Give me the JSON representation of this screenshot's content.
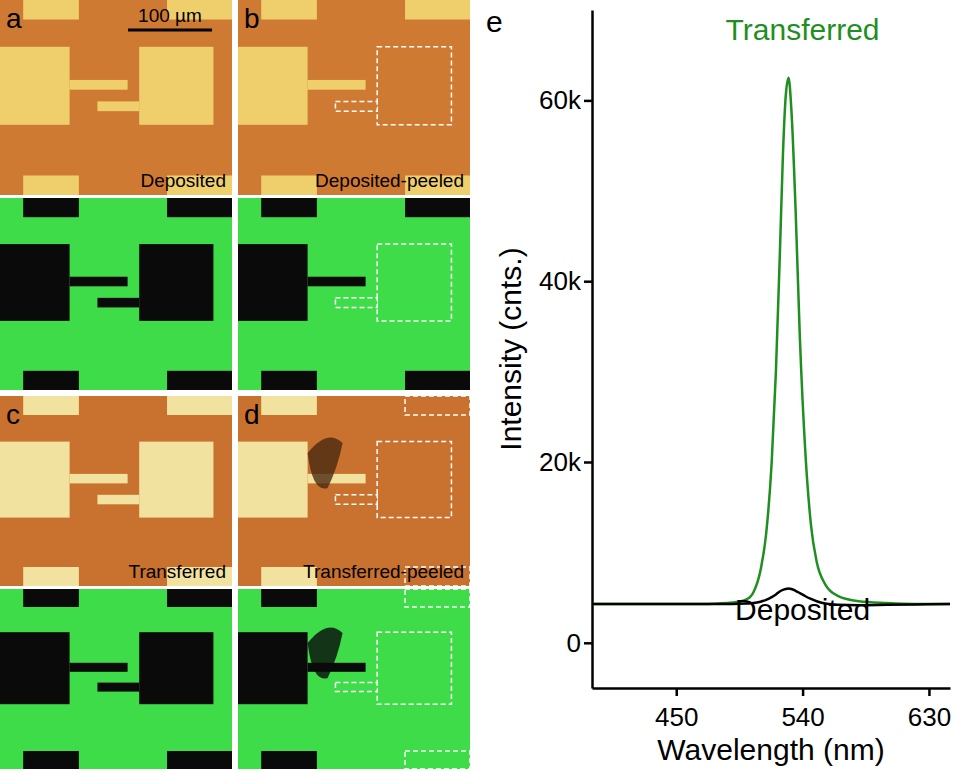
{
  "panels": [
    {
      "letter": "a",
      "label": "Deposited",
      "scale_bar": "100 µm"
    },
    {
      "letter": "b",
      "label": "Deposited-peeled"
    },
    {
      "letter": "c",
      "label": "Transferred"
    },
    {
      "letter": "d",
      "label": "Transferred-peeled"
    }
  ],
  "chart_data": {
    "type": "line",
    "panel_label": "e",
    "xlabel": "Wavelength (nm)",
    "ylabel": "Intensity (cnts.)",
    "x": [
      390,
      420,
      450,
      470,
      480,
      490,
      500,
      505,
      510,
      514,
      518,
      521,
      524,
      526,
      528,
      530,
      532,
      535,
      538,
      542,
      546,
      550,
      556,
      565,
      580,
      600,
      620,
      645
    ],
    "series": [
      {
        "name": "Transferred",
        "color": "#1f8f1f",
        "values": [
          4300,
          4300,
          4300,
          4300,
          4350,
          4450,
          4800,
          5600,
          8000,
          12000,
          20000,
          30000,
          44000,
          54000,
          60500,
          62500,
          59000,
          48000,
          34000,
          21000,
          13000,
          9000,
          6500,
          5200,
          4600,
          4400,
          4300,
          4300
        ]
      },
      {
        "name": "Deposited",
        "color": "#000000",
        "values": [
          4300,
          4300,
          4300,
          4300,
          4300,
          4300,
          4350,
          4400,
          4550,
          4750,
          5050,
          5350,
          5700,
          5850,
          5950,
          6000,
          5950,
          5750,
          5500,
          5150,
          4850,
          4600,
          4350,
          4200,
          4150,
          4200,
          4250,
          4300
        ]
      }
    ],
    "xlim": [
      390,
      645
    ],
    "ylim": [
      -5000,
      70000
    ],
    "xticks": [
      450,
      540,
      630
    ],
    "yticks": [
      0,
      {
        "value": 20000,
        "label": "20k"
      },
      {
        "value": 40000,
        "label": "40k"
      },
      {
        "value": 60000,
        "label": "60k"
      }
    ],
    "grid": false
  }
}
